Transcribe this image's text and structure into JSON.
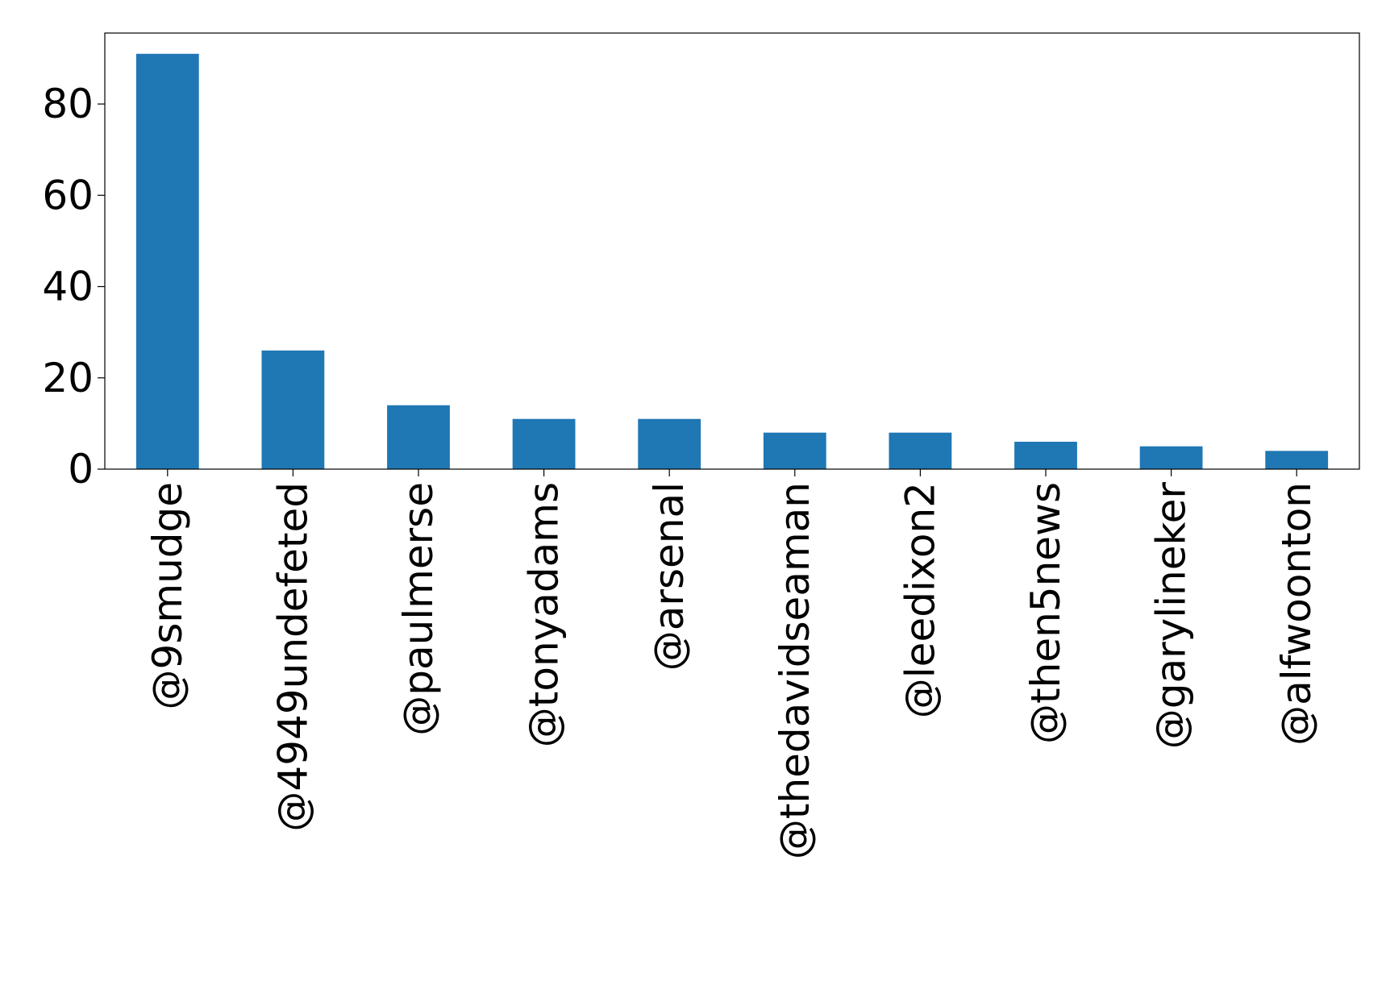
{
  "chart_data": {
    "type": "bar",
    "title": "",
    "xlabel": "",
    "ylabel": "",
    "categories": [
      "@9smudge",
      "@4949undefeted",
      "@paulmerse",
      "@tonyadams",
      "@arsenal",
      "@thedavidseaman",
      "@leedixon2",
      "@then5news",
      "@garylineker",
      "@alfwoonton"
    ],
    "values": [
      91,
      26,
      14,
      11,
      11,
      8,
      8,
      6,
      5,
      4
    ],
    "ylim": [
      0,
      95.55
    ],
    "yticks": [
      0,
      20,
      40,
      60,
      80
    ],
    "bar_color": "#1f77b4",
    "grid": false,
    "legend": "none"
  }
}
